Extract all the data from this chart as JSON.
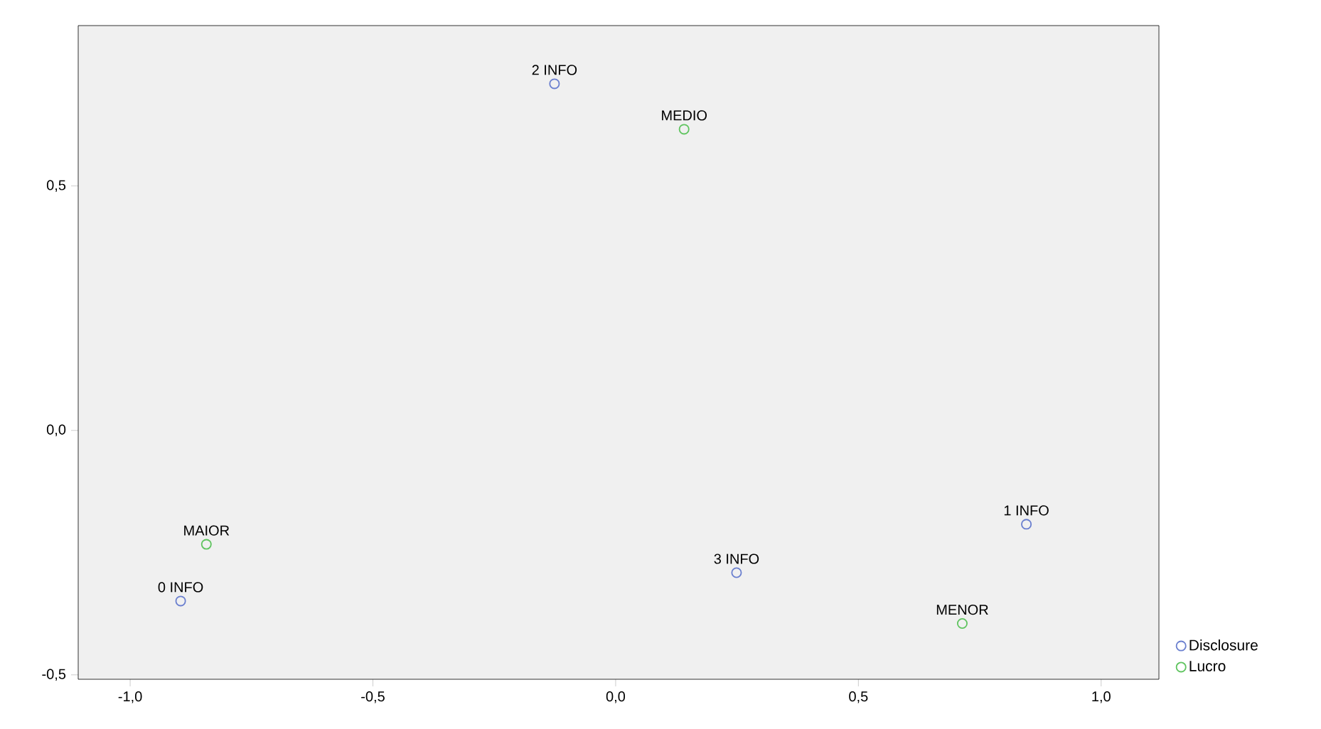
{
  "chart_data": {
    "type": "scatter",
    "marker": "circle",
    "legend": "right",
    "grid": false,
    "xlim": [
      -1.107,
      1.119
    ],
    "ylim": [
      -0.509,
      0.828
    ],
    "xticks": [
      {
        "value": -1,
        "label": "-1,0"
      },
      {
        "value": -0.5,
        "label": "-0,5"
      },
      {
        "value": 0,
        "label": "0,0"
      },
      {
        "value": 0.5,
        "label": "0,5"
      },
      {
        "value": 1,
        "label": "1,0"
      }
    ],
    "yticks": [
      {
        "value": -0.5,
        "label": "-0,5"
      },
      {
        "value": 0,
        "label": "0,0"
      },
      {
        "value": 0.5,
        "label": "0,5"
      }
    ],
    "series": [
      {
        "name": "Disclosure",
        "color": "#6a7fcf",
        "x": [
          -0.896,
          0.846,
          -0.126,
          0.249
        ],
        "values": [
          -0.349,
          -0.192,
          0.709,
          -0.291
        ]
      },
      {
        "name": "Lucro",
        "color": "#5fc45f",
        "x": [
          -0.843,
          0.141,
          0.714
        ],
        "values": [
          -0.233,
          0.616,
          -0.395
        ]
      }
    ],
    "annotations": [
      {
        "text": "0 INFO",
        "x": -0.896,
        "y": -0.349
      },
      {
        "text": "1 INFO",
        "x": 0.846,
        "y": -0.192
      },
      {
        "text": "2 INFO",
        "x": -0.126,
        "y": 0.709
      },
      {
        "text": "3 INFO",
        "x": 0.249,
        "y": -0.291
      },
      {
        "text": "MAIOR",
        "x": -0.843,
        "y": -0.233
      },
      {
        "text": "MEDIO",
        "x": 0.141,
        "y": 0.616
      },
      {
        "text": "MENOR",
        "x": 0.714,
        "y": -0.395
      }
    ]
  }
}
